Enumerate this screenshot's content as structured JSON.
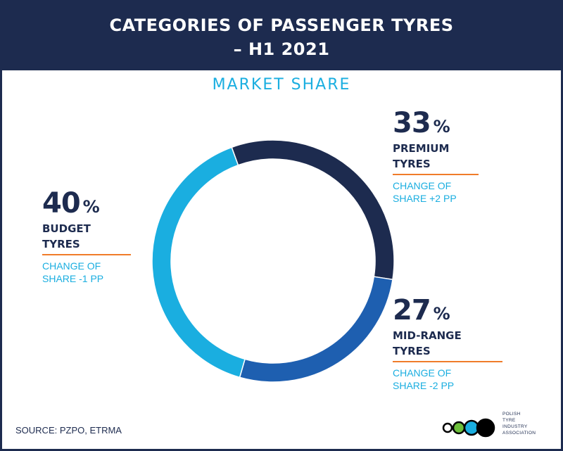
{
  "header": {
    "title_line1": "CATEGORIES OF PASSENGER TYRES",
    "title_line2": "–  H1 2021"
  },
  "subtitle": "MARKET SHARE",
  "chart_data": {
    "type": "pie",
    "title": "CATEGORIES OF PASSENGER TYRES – H1 2021",
    "subtitle": "MARKET SHARE",
    "unit": "%",
    "slices": [
      {
        "label": "PREMIUM TYRES",
        "value": 33,
        "change": "+2 PP",
        "color": "#1d2b4f"
      },
      {
        "label": "MID-RANGE TYRES",
        "value": 27,
        "change": "-2 PP",
        "color": "#1e5fb0"
      },
      {
        "label": "BUDGET TYRES",
        "value": 40,
        "change": "-1 PP",
        "color": "#1aaee0"
      }
    ]
  },
  "labels": {
    "premium": {
      "num": "33",
      "sym": "%",
      "name1": "PREMIUM",
      "name2": "TYRES",
      "chg1": "CHANGE OF",
      "chg2": "SHARE  +2 PP"
    },
    "midrange": {
      "num": "27",
      "sym": "%",
      "name1": "MID-RANGE",
      "name2": "TYRES",
      "chg1": "CHANGE OF",
      "chg2": "SHARE  -2 PP"
    },
    "budget": {
      "num": "40",
      "sym": "%",
      "name1": "BUDGET",
      "name2": "TYRES",
      "chg1": "CHANGE OF",
      "chg2": "SHARE  -1 PP"
    }
  },
  "source": "SOURCE: PZPO, ETRMA",
  "logo": {
    "line1": "POLISH",
    "line2": "TYRE",
    "line3": "INDUSTRY",
    "line4": "ASSOCIATION",
    "colors": [
      "#ffffff",
      "#6cbf3a",
      "#1aaee0",
      "#000000"
    ]
  }
}
